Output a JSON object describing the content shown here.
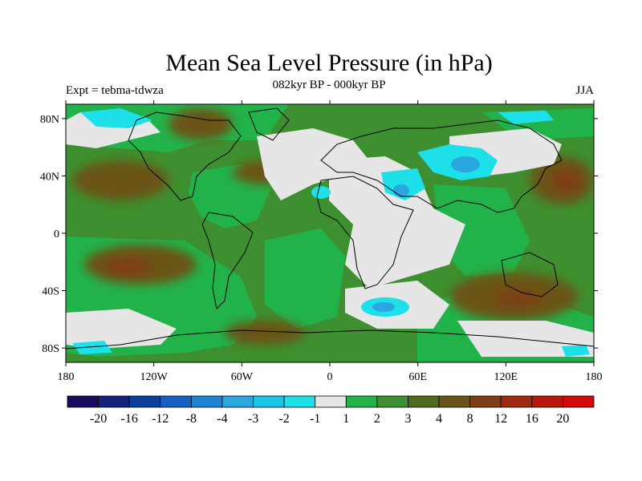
{
  "title": "Mean Sea Level Pressure (in hPa)",
  "subtitle": "082kyr BP - 000kyr BP",
  "left_label": "Expt = tebma-tdwza",
  "right_label": "JJA",
  "lon_ticks": [
    "180",
    "120W",
    "60W",
    "0",
    "60E",
    "120E",
    "180"
  ],
  "lat_ticks": [
    "80N",
    "40N",
    "0",
    "40S",
    "80S"
  ],
  "colorbar": {
    "labels": [
      "-20",
      "-16",
      "-12",
      "-8",
      "-4",
      "-3",
      "-2",
      "-1",
      "1",
      "2",
      "3",
      "4",
      "8",
      "12",
      "16",
      "20"
    ],
    "colors": [
      "#1a0a5e",
      "#13237d",
      "#0a3fa0",
      "#1560c4",
      "#1e85d6",
      "#2aa6e0",
      "#19c6e6",
      "#1de0e8",
      "#e6e6e6",
      "#22b24a",
      "#3d8f2f",
      "#4e6a1d",
      "#6a5418",
      "#7f3e14",
      "#a02a0e",
      "#b8180c",
      "#d40a0a"
    ]
  },
  "map": {
    "ocean_color": "#3d8f2f",
    "neutral_color": "#e6e6e6",
    "coast_color": "#000000"
  }
}
